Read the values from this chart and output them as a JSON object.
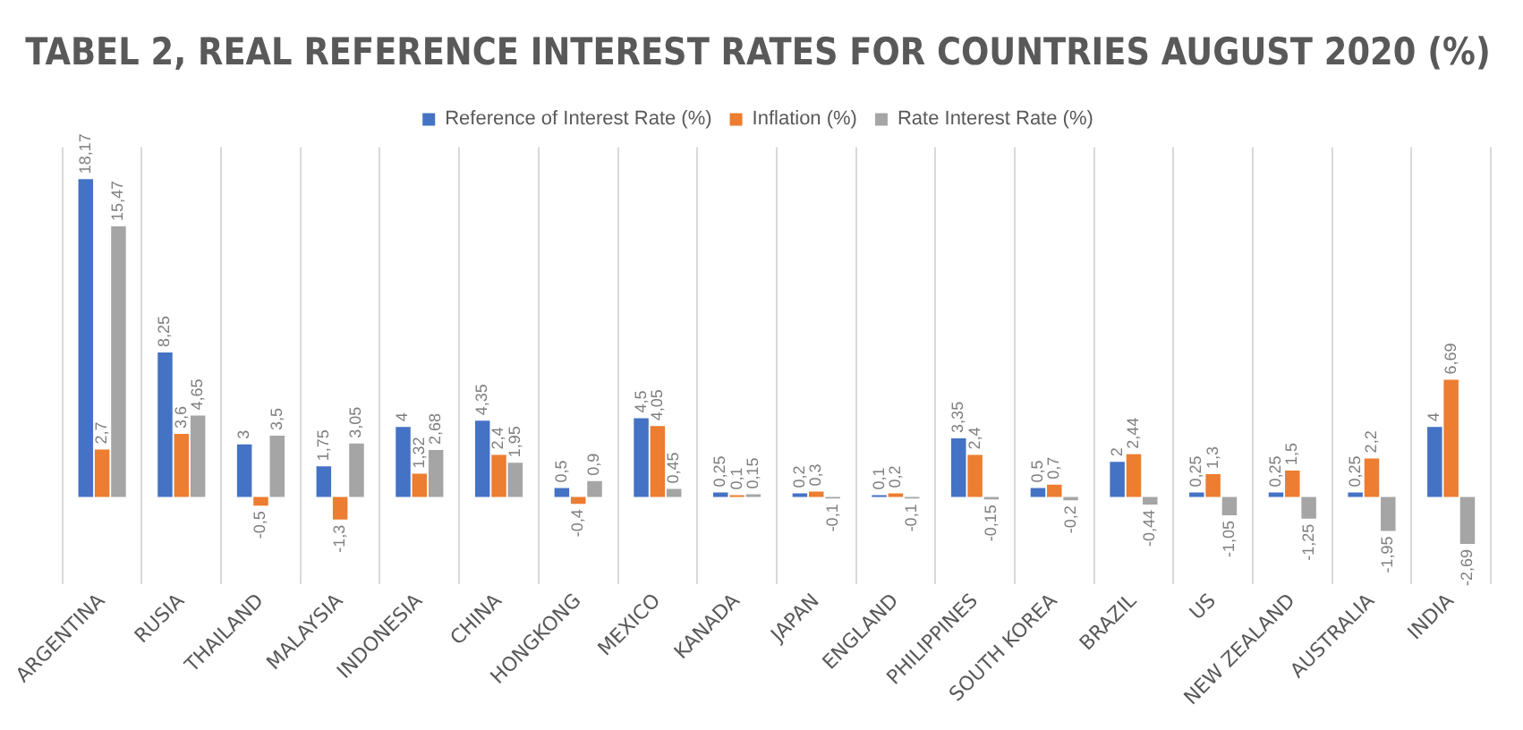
{
  "chart_data": {
    "type": "bar",
    "title": "TABEL 2, REAL REFERENCE INTEREST RATES FOR COUNTRIES AUGUST 2020 (%)",
    "categories": [
      "ARGENTINA",
      "RUSIA",
      "THAILAND",
      "MALAYSIA",
      "INDONESIA",
      "CHINA",
      "HONGKONG",
      "MEXICO",
      "KANADA",
      "JAPAN",
      "ENGLAND",
      "PHILIPPINES",
      "SOUTH KOREA",
      "BRAZIL",
      "US",
      "NEW ZEALAND",
      "AUSTRALIA",
      "INDIA"
    ],
    "series": [
      {
        "name": "Reference of Interest Rate (%)",
        "color": "#4472c4",
        "values": [
          18.17,
          8.25,
          3,
          1.75,
          4,
          4.35,
          0.5,
          4.5,
          0.25,
          0.2,
          0.1,
          3.35,
          0.5,
          2,
          0.25,
          0.25,
          0.25,
          4
        ],
        "value_labels": [
          "18,17",
          "8,25",
          "3",
          "1,75",
          "4",
          "4,35",
          "0,5",
          "4,5",
          "0,25",
          "0,2",
          "0,1",
          "3,35",
          "0,5",
          "2",
          "0,25",
          "0,25",
          "0,25",
          "4"
        ]
      },
      {
        "name": "Inflation (%)",
        "color": "#ed7d31",
        "values": [
          2.7,
          3.6,
          -0.5,
          -1.3,
          1.32,
          2.4,
          -0.4,
          4.05,
          0.1,
          0.3,
          0.2,
          2.4,
          0.7,
          2.44,
          1.3,
          1.5,
          2.2,
          6.69
        ],
        "value_labels": [
          "2,7",
          "3,6",
          "-0,5",
          "-1,3",
          "1,32",
          "2,4",
          "-0,4",
          "4,05",
          "0,1",
          "0,3",
          "0,2",
          "2,4",
          "0,7",
          "2,44",
          "1,3",
          "1,5",
          "2,2",
          "6,69"
        ]
      },
      {
        "name": "Rate Interest Rate (%)",
        "color": "#a5a5a5",
        "values": [
          15.47,
          4.65,
          3.5,
          3.05,
          2.68,
          1.95,
          0.9,
          0.45,
          0.15,
          -0.1,
          -0.1,
          -0.15,
          -0.2,
          -0.44,
          -1.05,
          -1.25,
          -1.95,
          -2.69
        ],
        "value_labels": [
          "15,47",
          "4,65",
          "3,5",
          "3,05",
          "2,68",
          "1,95",
          "0,9",
          "0,45",
          "0,15",
          "-0,1",
          "-0,1",
          "-0,15",
          "-0,2",
          "-0,44",
          "-1,05",
          "-1,25",
          "-1,95",
          "-2,69"
        ]
      }
    ],
    "relative": false,
    "grid": "x",
    "legend": "top"
  }
}
